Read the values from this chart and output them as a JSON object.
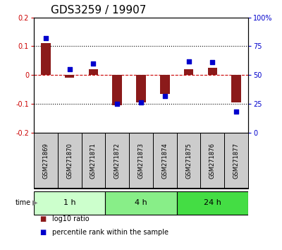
{
  "title": "GDS3259 / 19907",
  "samples": [
    "GSM271869",
    "GSM271870",
    "GSM271871",
    "GSM271872",
    "GSM271873",
    "GSM271874",
    "GSM271875",
    "GSM271876",
    "GSM271877"
  ],
  "log10_ratio": [
    0.11,
    -0.01,
    0.02,
    -0.105,
    -0.095,
    -0.065,
    0.02,
    0.025,
    -0.095
  ],
  "percentile_rank": [
    82,
    55,
    60,
    25,
    26,
    32,
    62,
    61,
    18
  ],
  "groups": [
    {
      "label": "1 h",
      "indices": [
        0,
        1,
        2
      ],
      "color": "#ccffcc"
    },
    {
      "label": "4 h",
      "indices": [
        3,
        4,
        5
      ],
      "color": "#88ee88"
    },
    {
      "label": "24 h",
      "indices": [
        6,
        7,
        8
      ],
      "color": "#44dd44"
    }
  ],
  "bar_color": "#8B1A1A",
  "dot_color": "#0000CC",
  "ylim": [
    -0.2,
    0.2
  ],
  "y2lim": [
    0,
    100
  ],
  "yticks": [
    -0.2,
    -0.1,
    0.0,
    0.1,
    0.2
  ],
  "y2ticks": [
    0,
    25,
    50,
    75,
    100
  ],
  "ytick_labels": [
    "-0.2",
    "-0.1",
    "0",
    "0.1",
    "0.2"
  ],
  "y2tick_labels": [
    "0",
    "25",
    "50",
    "75",
    "100%"
  ],
  "hlines_dotted": [
    -0.1,
    0.1
  ],
  "hline_dashed": 0.0,
  "grid_color": "#000000",
  "dashed_zero_color": "#CC0000",
  "bg_color": "#ffffff",
  "sample_box_color": "#cccccc",
  "title_fontsize": 11,
  "tick_fontsize": 7,
  "legend_items": [
    {
      "label": "log10 ratio",
      "color": "#8B1A1A"
    },
    {
      "label": "percentile rank within the sample",
      "color": "#0000CC"
    }
  ]
}
